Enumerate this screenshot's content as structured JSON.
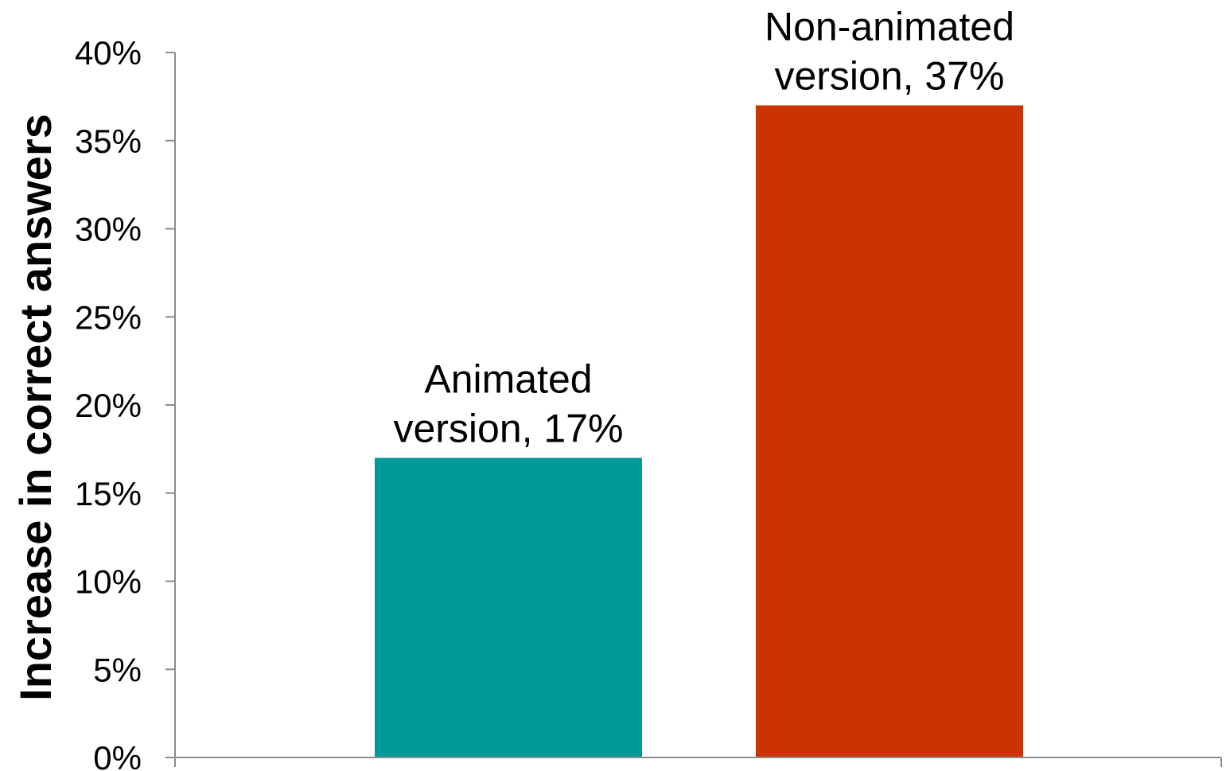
{
  "chart_data": {
    "type": "bar",
    "categories": [
      "",
      ""
    ],
    "values": [
      17,
      37
    ],
    "colors": [
      "#009999",
      "#CC3300"
    ],
    "data_labels": [
      [
        "Animated",
        "version, 17%"
      ],
      [
        "Non-animated",
        "version, 37%"
      ]
    ],
    "ylabel": "Increase in correct answers",
    "xlabel": "",
    "ylim": [
      0,
      40
    ],
    "yticks": [
      0,
      5,
      10,
      15,
      20,
      25,
      30,
      35,
      40
    ],
    "ytick_labels": [
      "0%",
      "5%",
      "10%",
      "15%",
      "20%",
      "25%",
      "30%",
      "35%",
      "40%"
    ],
    "grid": false,
    "legend": "none"
  }
}
